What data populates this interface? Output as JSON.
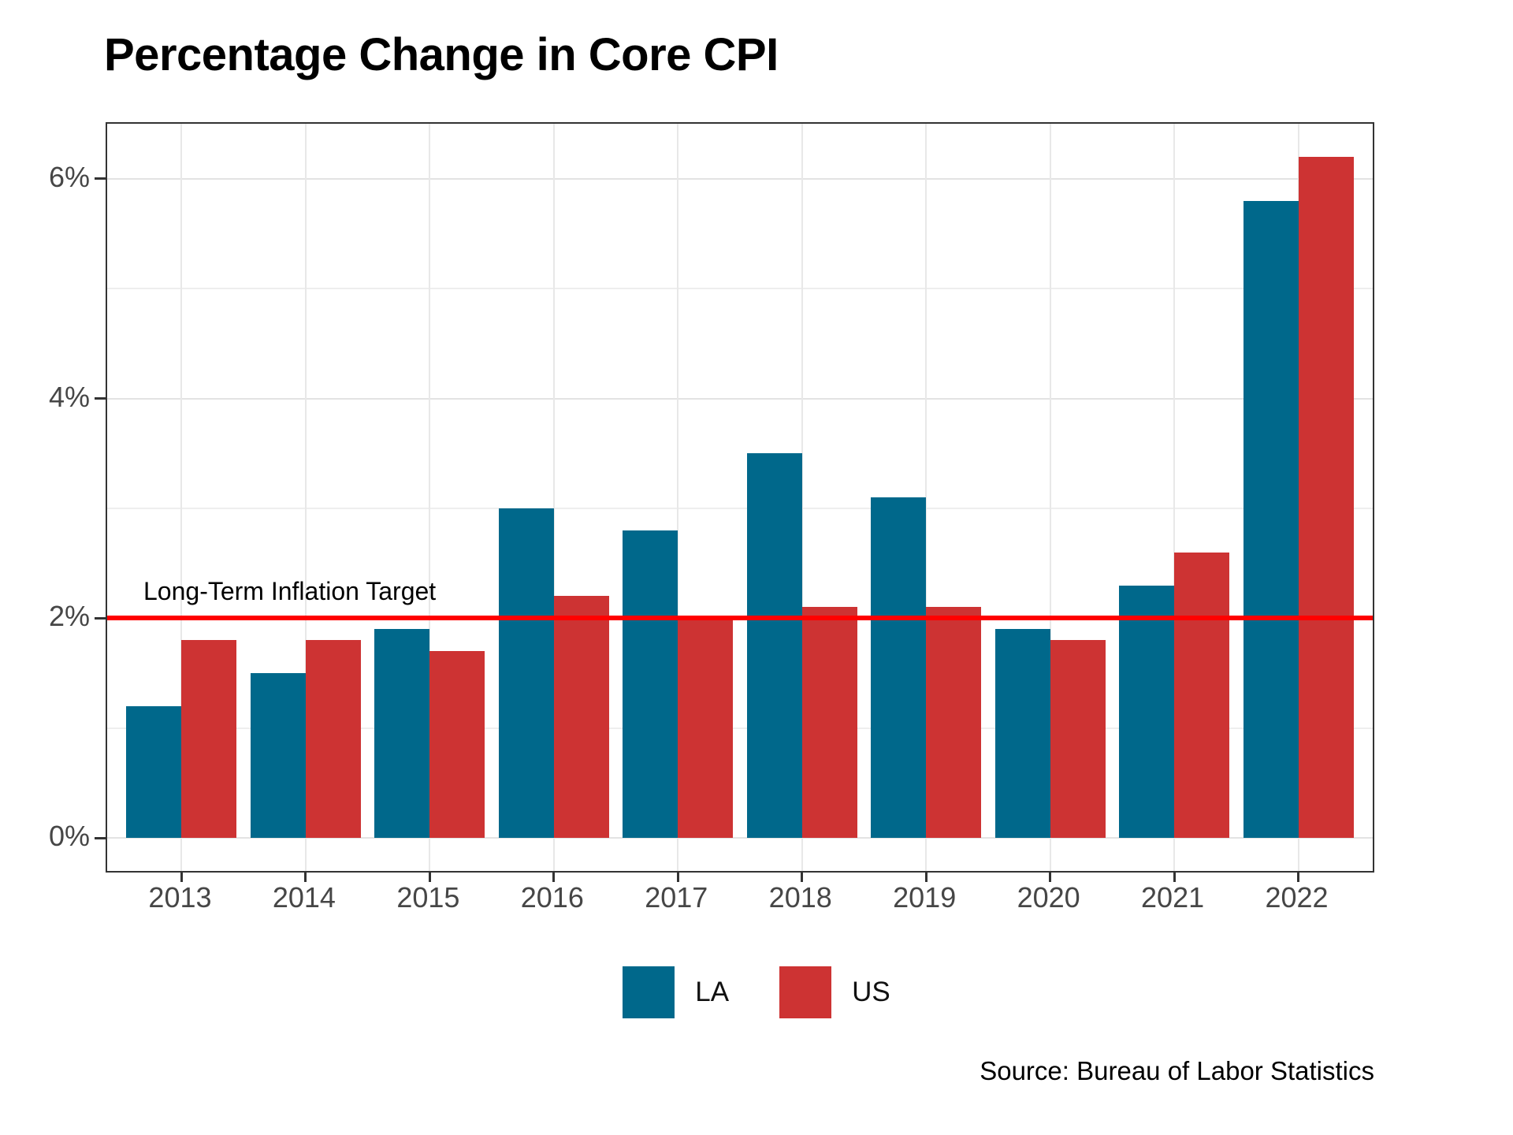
{
  "chart_data": {
    "type": "bar",
    "title": "Percentage Change in Core CPI",
    "categories": [
      "2013",
      "2014",
      "2015",
      "2016",
      "2017",
      "2018",
      "2019",
      "2020",
      "2021",
      "2022"
    ],
    "series": [
      {
        "name": "LA",
        "color": "#00688B",
        "values": [
          1.2,
          1.5,
          1.9,
          3.0,
          2.8,
          3.5,
          3.1,
          1.9,
          2.3,
          5.8
        ]
      },
      {
        "name": "US",
        "color": "#CD3333",
        "values": [
          1.8,
          1.8,
          1.7,
          2.2,
          2.0,
          2.1,
          2.1,
          1.8,
          2.6,
          6.2
        ]
      }
    ],
    "xlabel": "",
    "ylabel": "",
    "y_ticks": [
      0,
      2,
      4,
      6
    ],
    "y_tick_labels": [
      "0%",
      "2%",
      "4%",
      "6%"
    ],
    "y_minor_ticks": [
      1,
      3,
      5
    ],
    "ylim": [
      -0.3,
      6.5
    ],
    "grid": true,
    "legend_position": "bottom",
    "target_line": {
      "value": 2,
      "label": "Long-Term Inflation Target",
      "color": "#FF0000"
    },
    "source": "Source: Bureau of Labor Statistics"
  },
  "colors": {
    "axis_text": "#464646",
    "panel_border": "#333333",
    "grid_major": "#e3e3e3",
    "grid_minor": "#eeeeee",
    "grid_vertical": "#e8e8e8",
    "title_text": "#000000"
  }
}
